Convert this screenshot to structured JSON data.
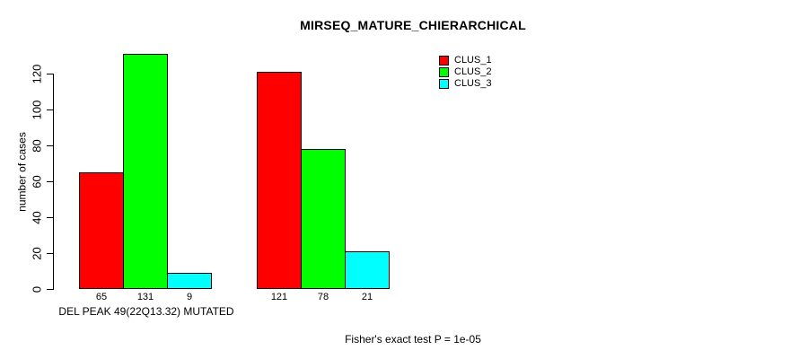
{
  "chart_data": {
    "type": "bar",
    "title": "MIRSEQ_MATURE_CHIERARCHICAL",
    "xlabel": "",
    "ylabel": "number of cases",
    "ylim": [
      0,
      131
    ],
    "yticks": [
      0,
      20,
      40,
      60,
      80,
      100,
      120
    ],
    "grid": false,
    "legend_position": "top-right",
    "categories": [
      "DEL PEAK 49(22Q13.32) MUTATED",
      ""
    ],
    "series": [
      {
        "name": "CLUS_1",
        "color": "#FF0000",
        "values": [
          65,
          121
        ]
      },
      {
        "name": "CLUS_2",
        "color": "#00FF00",
        "values": [
          131,
          78
        ]
      },
      {
        "name": "CLUS_3",
        "color": "#00FFFF",
        "values": [
          9,
          21
        ]
      }
    ],
    "bar_value_labels": [
      [
        65,
        131,
        9
      ],
      [
        121,
        78,
        21
      ]
    ],
    "annotation": "Fisher's exact test P = 1e-05"
  }
}
